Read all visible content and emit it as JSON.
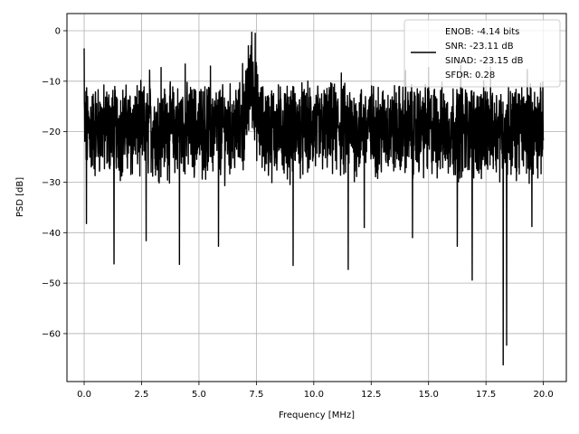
{
  "chart_data": {
    "type": "line",
    "xlabel": "Frequency [MHz]",
    "ylabel": "PSD [dB]",
    "xlim": [
      -0.75,
      21.0
    ],
    "ylim": [
      -69.5,
      3.4
    ],
    "xticks": [
      0.0,
      2.5,
      5.0,
      7.5,
      10.0,
      12.5,
      15.0,
      17.5,
      20.0
    ],
    "xtick_labels": [
      "0.0",
      "2.5",
      "5.0",
      "7.5",
      "10.0",
      "12.5",
      "15.0",
      "17.5",
      "20.0"
    ],
    "yticks": [
      0,
      -10,
      -20,
      -30,
      -40,
      -50,
      -60
    ],
    "ytick_labels": [
      "0",
      "−10",
      "−20",
      "−30",
      "−40",
      "−50",
      "−60"
    ],
    "grid": true,
    "legend_position": "top-right",
    "legend": {
      "lines": [
        "ENOB: -4.14 bits",
        "SNR: -23.11 dB",
        "SINAD: -23.15 dB",
        "SFDR: 0.28"
      ]
    },
    "series": [
      {
        "color": "#000000",
        "x_range": [
          0.0,
          20.0
        ],
        "noise_floor_mean": -19.5,
        "noise_upper_typical": -12.5,
        "noise_lower_typical": -28.0,
        "peaks": [
          {
            "x": 0.0,
            "y": -3.5
          },
          {
            "x": 7.3,
            "y": -0.3
          },
          {
            "x": 7.45,
            "y": -0.5
          },
          {
            "x": 7.15,
            "y": -3.0
          },
          {
            "x": 6.9,
            "y": -6.5
          },
          {
            "x": 4.4,
            "y": -6.6
          },
          {
            "x": 2.85,
            "y": -7.8
          },
          {
            "x": 3.35,
            "y": -7.3
          },
          {
            "x": 5.5,
            "y": -7.0
          },
          {
            "x": 11.2,
            "y": -8.4
          },
          {
            "x": 14.0,
            "y": -7.9
          },
          {
            "x": 15.0,
            "y": -7.3
          },
          {
            "x": 16.4,
            "y": -6.9
          },
          {
            "x": 16.9,
            "y": -6.6
          },
          {
            "x": 17.7,
            "y": -7.2
          },
          {
            "x": 19.3,
            "y": -7.7
          }
        ],
        "dips": [
          {
            "x": 0.1,
            "y": -38.2
          },
          {
            "x": 1.3,
            "y": -46.2
          },
          {
            "x": 2.7,
            "y": -41.6
          },
          {
            "x": 4.15,
            "y": -46.3
          },
          {
            "x": 5.85,
            "y": -42.7
          },
          {
            "x": 9.1,
            "y": -46.5
          },
          {
            "x": 11.5,
            "y": -47.3
          },
          {
            "x": 16.9,
            "y": -49.4
          },
          {
            "x": 18.25,
            "y": -66.2
          },
          {
            "x": 18.4,
            "y": -62.3
          },
          {
            "x": 16.25,
            "y": -42.7
          },
          {
            "x": 14.3,
            "y": -41.0
          },
          {
            "x": 12.2,
            "y": -39.0
          },
          {
            "x": 19.5,
            "y": -38.8
          }
        ]
      }
    ]
  }
}
